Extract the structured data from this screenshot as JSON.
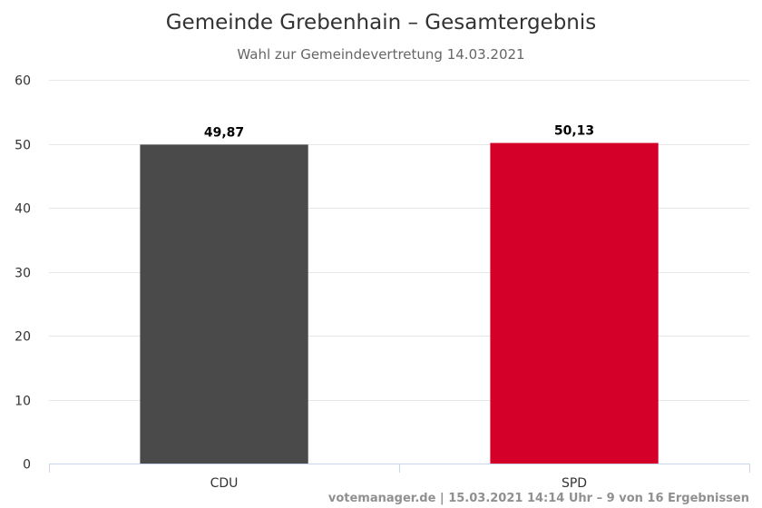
{
  "chart_data": {
    "type": "bar",
    "title": "Gemeinde Grebenhain – Gesamtergebnis",
    "subtitle": "Wahl zur Gemeindevertretung 14.03.2021",
    "categories": [
      "CDU",
      "SPD"
    ],
    "values": [
      49.87,
      50.13
    ],
    "value_labels": [
      "49,87",
      "50,13"
    ],
    "colors": [
      "#4a4a4a",
      "#d50029"
    ],
    "ylim": [
      0,
      60
    ],
    "yticks": [
      0,
      10,
      20,
      30,
      40,
      50,
      60
    ],
    "grid": true,
    "legend": false
  },
  "credits": "votemanager.de | 15.03.2021 14:14 Uhr – 9 von 16 Ergebnissen"
}
